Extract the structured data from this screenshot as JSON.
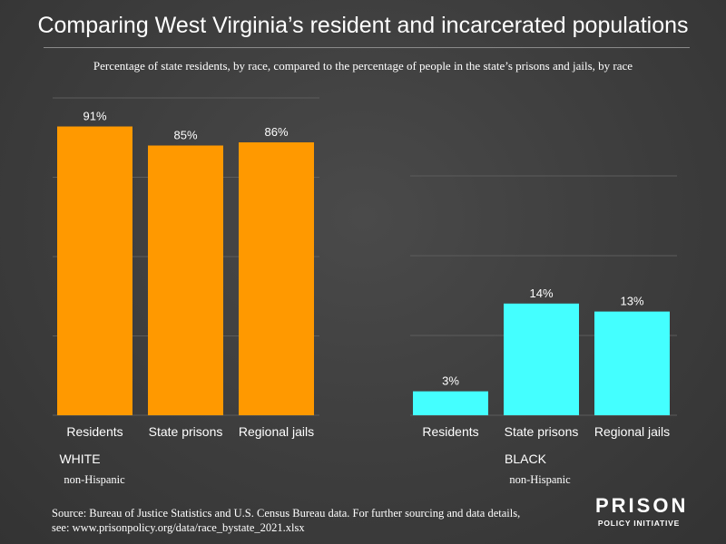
{
  "title": "Comparing West Virginia’s resident and incarcerated populations",
  "subtitle": "Percentage of state residents, by race, compared to the percentage of people in the state’s prisons and jails, by race",
  "source": "Source: Bureau of Justice Statistics and U.S. Census Bureau data. For further sourcing and data details, see: www.prisonpolicy.org/data/race_bystate_2021.xlsx",
  "logo": {
    "line1": "PRISON",
    "line2": "POLICY INITIATIVE"
  },
  "colors": {
    "white_group": "#ff9900",
    "black_group": "#44ffff",
    "grid": "#5c5c5c",
    "text": "#ffffff"
  },
  "chart_data": [
    {
      "type": "bar",
      "group_label": "WHITE",
      "group_sublabel": "non-Hispanic",
      "categories": [
        "Residents",
        "State prisons",
        "Regional jails"
      ],
      "values": [
        91,
        85,
        86
      ],
      "value_labels": [
        "91%",
        "85%",
        "86%"
      ],
      "ylim": [
        0,
        100
      ],
      "grid": true
    },
    {
      "type": "bar",
      "group_label": "BLACK",
      "group_sublabel": "non-Hispanic",
      "categories": [
        "Residents",
        "State prisons",
        "Regional jails"
      ],
      "values": [
        3,
        14,
        13
      ],
      "value_labels": [
        "3%",
        "14%",
        "13%"
      ],
      "ylim": [
        0,
        30
      ],
      "grid": true
    }
  ]
}
